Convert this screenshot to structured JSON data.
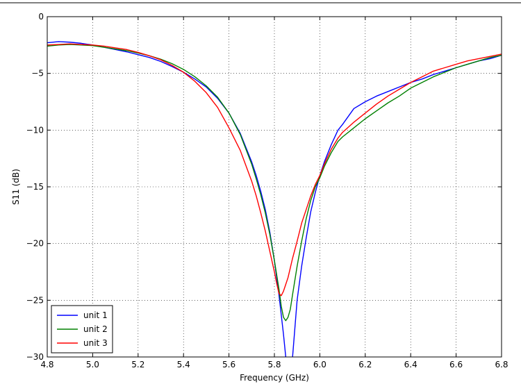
{
  "chart_data": {
    "type": "line",
    "title": "",
    "xlabel": "Frequency (GHz)",
    "ylabel": "S11 (dB)",
    "xlim": [
      4.8,
      6.8
    ],
    "ylim": [
      -30,
      0
    ],
    "xticks": [
      4.8,
      5.0,
      5.2,
      5.4,
      5.6,
      5.8,
      6.0,
      6.2,
      6.4,
      6.6,
      6.8
    ],
    "xtick_labels": [
      "4.8",
      "5.0",
      "5.2",
      "5.4",
      "5.6",
      "5.8",
      "6.0",
      "6.2",
      "6.4",
      "6.6",
      "6.8"
    ],
    "yticks": [
      -30,
      -25,
      -20,
      -15,
      -10,
      -5,
      0
    ],
    "ytick_labels": [
      "−30",
      "−25",
      "−20",
      "−15",
      "−10",
      "−5",
      "0"
    ],
    "grid": true,
    "legend_position": "lower-left",
    "series": [
      {
        "name": "unit 1",
        "color": "#0000ff",
        "x": [
          4.8,
          4.85,
          4.9,
          4.95,
          5.0,
          5.05,
          5.1,
          5.15,
          5.2,
          5.25,
          5.3,
          5.35,
          5.4,
          5.45,
          5.5,
          5.55,
          5.6,
          5.65,
          5.7,
          5.72,
          5.74,
          5.76,
          5.78,
          5.8,
          5.82,
          5.84,
          5.85,
          5.86,
          5.87,
          5.88,
          5.89,
          5.9,
          5.92,
          5.94,
          5.96,
          5.98,
          6.0,
          6.02,
          6.05,
          6.08,
          6.1,
          6.15,
          6.2,
          6.25,
          6.3,
          6.35,
          6.4,
          6.45,
          6.5,
          6.55,
          6.6,
          6.65,
          6.7,
          6.75,
          6.8
        ],
        "values": [
          -2.3,
          -2.2,
          -2.25,
          -2.35,
          -2.5,
          -2.7,
          -2.9,
          -3.1,
          -3.35,
          -3.6,
          -3.95,
          -4.4,
          -4.9,
          -5.5,
          -6.2,
          -7.2,
          -8.5,
          -10.3,
          -12.8,
          -14.0,
          -15.4,
          -17.0,
          -19.0,
          -21.5,
          -24.5,
          -28.0,
          -30.0,
          -31.0,
          -31.0,
          -30.0,
          -27.5,
          -25.0,
          -22.0,
          -19.5,
          -17.2,
          -15.5,
          -14.0,
          -12.8,
          -11.3,
          -10.0,
          -9.5,
          -8.1,
          -7.5,
          -7.0,
          -6.6,
          -6.2,
          -5.8,
          -5.5,
          -5.1,
          -4.8,
          -4.5,
          -4.2,
          -3.9,
          -3.7,
          -3.4
        ]
      },
      {
        "name": "unit 2",
        "color": "#008000",
        "x": [
          4.8,
          4.85,
          4.9,
          4.95,
          5.0,
          5.05,
          5.1,
          5.15,
          5.2,
          5.25,
          5.3,
          5.35,
          5.4,
          5.45,
          5.5,
          5.55,
          5.6,
          5.65,
          5.7,
          5.72,
          5.74,
          5.76,
          5.78,
          5.8,
          5.82,
          5.83,
          5.84,
          5.85,
          5.86,
          5.87,
          5.88,
          5.9,
          5.92,
          5.94,
          5.96,
          5.98,
          6.0,
          6.02,
          6.05,
          6.08,
          6.1,
          6.15,
          6.2,
          6.25,
          6.3,
          6.35,
          6.4,
          6.45,
          6.5,
          6.55,
          6.6,
          6.65,
          6.7,
          6.75,
          6.8
        ],
        "values": [
          -2.6,
          -2.5,
          -2.45,
          -2.5,
          -2.55,
          -2.7,
          -2.85,
          -3.0,
          -3.2,
          -3.45,
          -3.75,
          -4.15,
          -4.65,
          -5.3,
          -6.1,
          -7.1,
          -8.5,
          -10.4,
          -13.0,
          -14.3,
          -15.7,
          -17.3,
          -19.2,
          -21.5,
          -24.0,
          -25.5,
          -26.5,
          -26.8,
          -26.5,
          -25.8,
          -24.5,
          -22.0,
          -19.8,
          -17.8,
          -16.2,
          -15.0,
          -14.2,
          -13.2,
          -12.0,
          -11.0,
          -10.6,
          -9.8,
          -9.0,
          -8.3,
          -7.6,
          -7.0,
          -6.3,
          -5.8,
          -5.3,
          -4.9,
          -4.5,
          -4.2,
          -3.9,
          -3.6,
          -3.4
        ]
      },
      {
        "name": "unit 3",
        "color": "#ff0000",
        "x": [
          4.8,
          4.85,
          4.9,
          4.95,
          5.0,
          5.05,
          5.1,
          5.15,
          5.2,
          5.25,
          5.3,
          5.35,
          5.4,
          5.45,
          5.5,
          5.55,
          5.6,
          5.65,
          5.7,
          5.72,
          5.74,
          5.76,
          5.78,
          5.8,
          5.81,
          5.82,
          5.83,
          5.84,
          5.85,
          5.86,
          5.88,
          5.9,
          5.92,
          5.94,
          5.96,
          5.98,
          6.0,
          6.02,
          6.05,
          6.08,
          6.1,
          6.15,
          6.2,
          6.25,
          6.3,
          6.35,
          6.4,
          6.45,
          6.5,
          6.55,
          6.6,
          6.65,
          6.7,
          6.75,
          6.8
        ],
        "values": [
          -2.5,
          -2.45,
          -2.4,
          -2.45,
          -2.5,
          -2.6,
          -2.75,
          -2.9,
          -3.15,
          -3.45,
          -3.8,
          -4.3,
          -4.9,
          -5.7,
          -6.7,
          -8.0,
          -9.8,
          -11.8,
          -14.5,
          -15.8,
          -17.3,
          -18.9,
          -20.7,
          -22.5,
          -23.5,
          -24.4,
          -24.6,
          -24.2,
          -23.6,
          -23.0,
          -21.3,
          -19.8,
          -18.2,
          -17.0,
          -15.8,
          -14.8,
          -14.0,
          -13.0,
          -11.7,
          -10.7,
          -10.2,
          -9.3,
          -8.5,
          -7.7,
          -7.0,
          -6.4,
          -5.8,
          -5.3,
          -4.8,
          -4.5,
          -4.2,
          -3.9,
          -3.7,
          -3.5,
          -3.3
        ]
      }
    ]
  }
}
